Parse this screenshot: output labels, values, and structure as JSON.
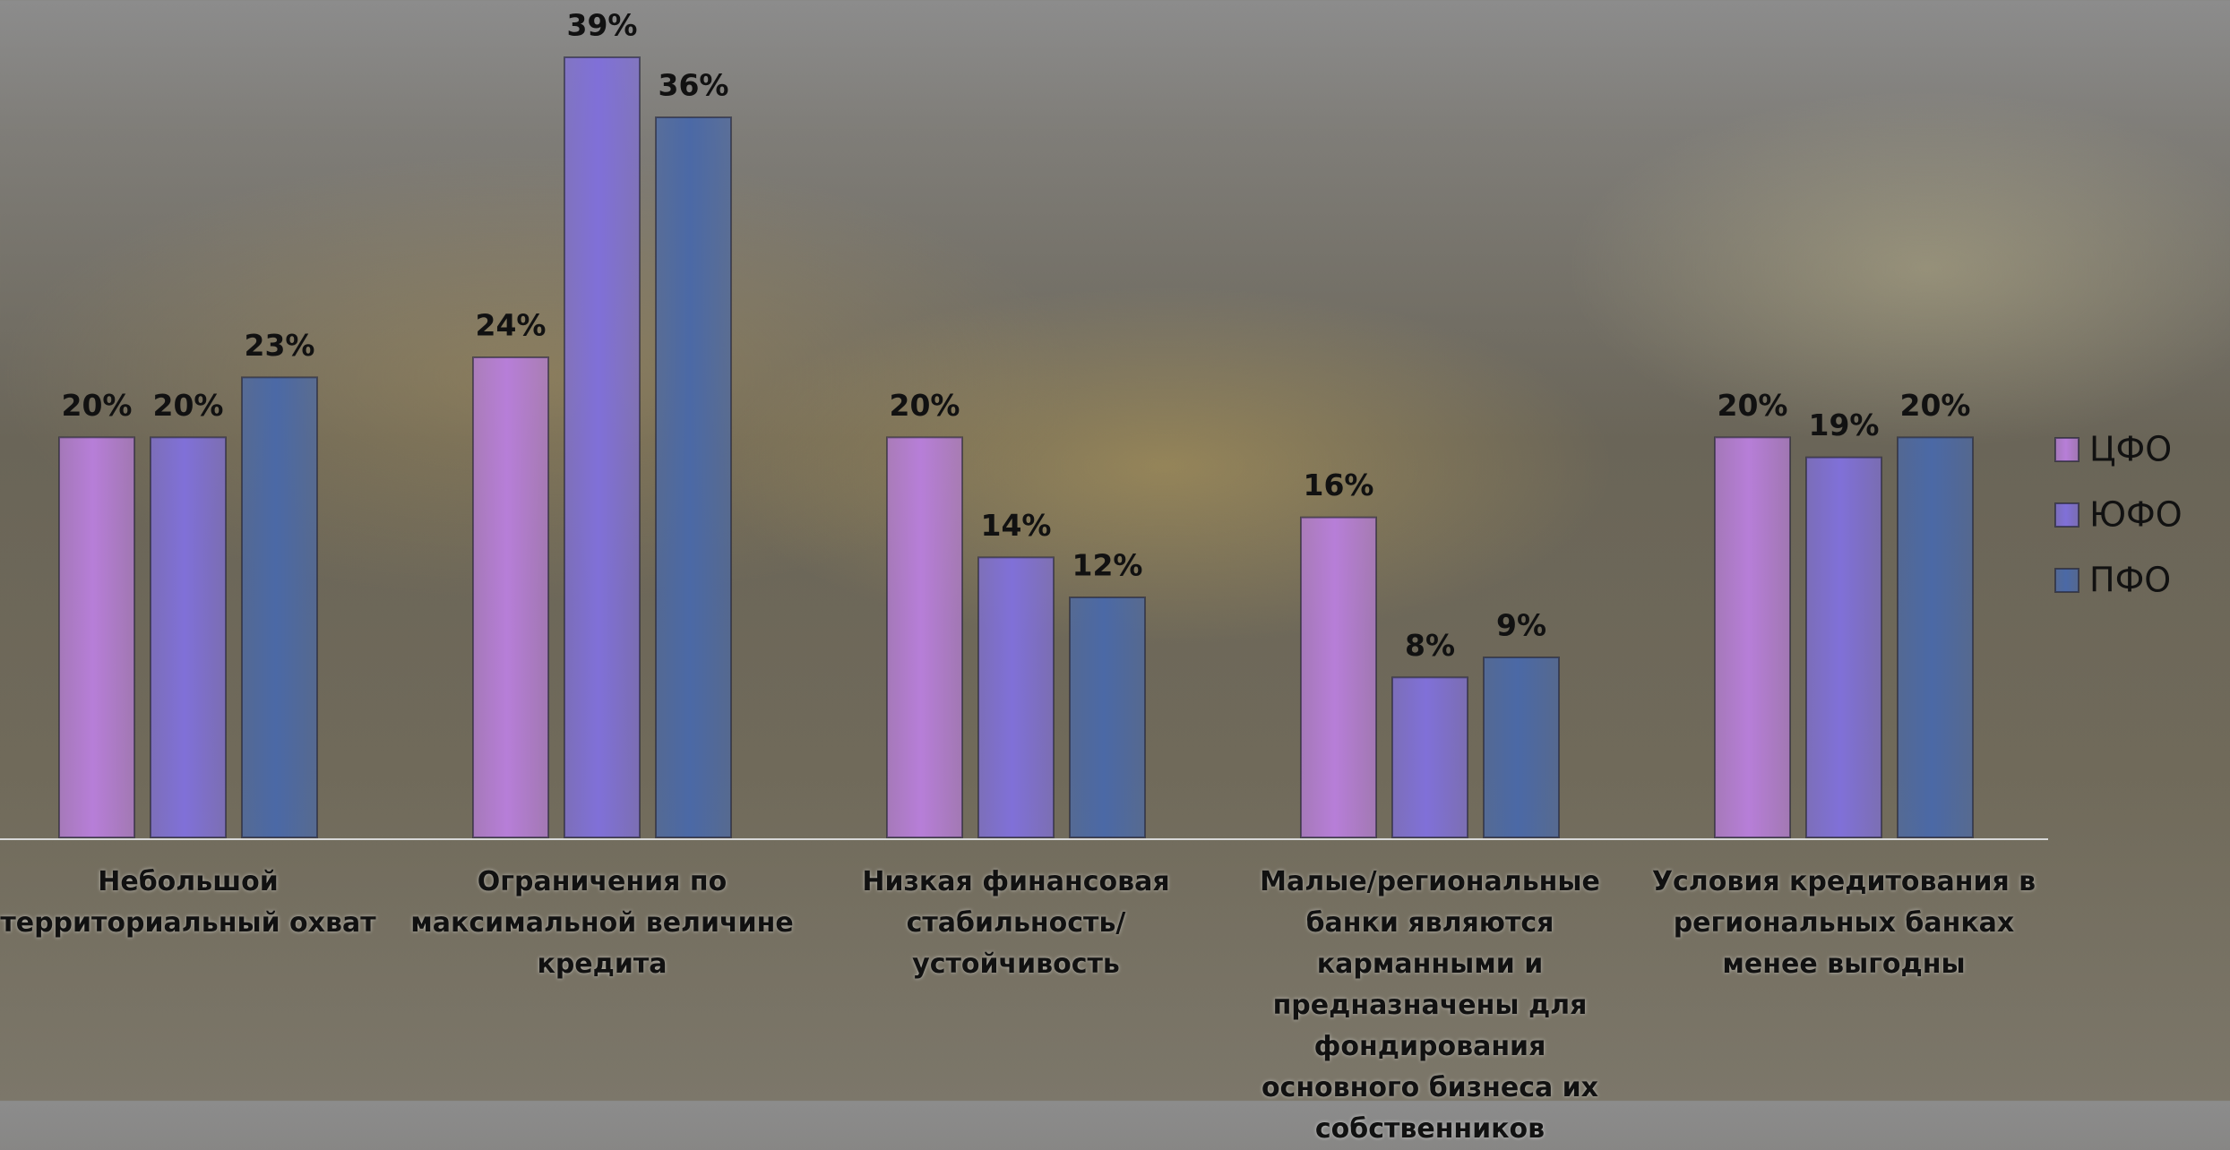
{
  "chart_data": {
    "type": "bar",
    "categories": [
      "Небольшой территориальный охват",
      "Ограничения по максимальной величине кредита",
      "Низкая финансовая стабильность/устойчивость",
      "Малые/региональные банки являются карманными и предназначены для фондирования основного бизнеса их собственников",
      "Условия кредитования в региональных банках менее выгодны"
    ],
    "series": [
      {
        "name": "ЦФО",
        "color": "#b77ed8",
        "values": [
          20,
          24,
          20,
          16,
          20
        ],
        "value_labels": [
          "20%",
          "24%",
          "20%",
          "16%",
          "20%"
        ]
      },
      {
        "name": "ЮФО",
        "color": "#8070d8",
        "values": [
          20,
          39,
          14,
          8,
          19
        ],
        "value_labels": [
          "20%",
          "39%",
          "14%",
          "8%",
          "19%"
        ]
      },
      {
        "name": "ПФО",
        "color": "#4b69a6",
        "values": [
          23,
          36,
          12,
          9,
          20
        ],
        "value_labels": [
          "23%",
          "36%",
          "12%",
          "9%",
          "20%"
        ]
      }
    ],
    "legend": "right"
  }
}
